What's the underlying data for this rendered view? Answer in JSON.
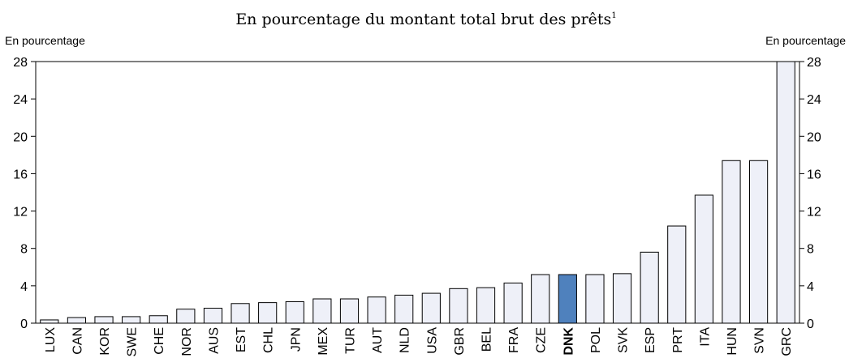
{
  "chart_data": {
    "type": "bar",
    "title": "En pourcentage du montant total brut des prêts",
    "title_note": "1",
    "ylabel": "En pourcentage",
    "y2label": "En pourcentage",
    "categories": [
      "LUX",
      "CAN",
      "KOR",
      "SWE",
      "CHE",
      "NOR",
      "AUS",
      "EST",
      "CHL",
      "JPN",
      "MEX",
      "TUR",
      "AUT",
      "NLD",
      "USA",
      "GBR",
      "BEL",
      "FRA",
      "CZE",
      "DNK",
      "POL",
      "SVK",
      "ESP",
      "PRT",
      "ITA",
      "HUN",
      "SVN",
      "GRC"
    ],
    "values": [
      0.35,
      0.6,
      0.7,
      0.7,
      0.8,
      1.5,
      1.6,
      2.1,
      2.2,
      2.3,
      2.6,
      2.6,
      2.8,
      3.0,
      3.2,
      3.7,
      3.8,
      4.3,
      5.2,
      5.2,
      5.2,
      5.3,
      7.6,
      10.4,
      13.7,
      17.4,
      17.4,
      28
    ],
    "colors": [
      "#eef0f8",
      "#eef0f8",
      "#eef0f8",
      "#eef0f8",
      "#eef0f8",
      "#eef0f8",
      "#eef0f8",
      "#eef0f8",
      "#eef0f8",
      "#eef0f8",
      "#eef0f8",
      "#eef0f8",
      "#eef0f8",
      "#eef0f8",
      "#eef0f8",
      "#eef0f8",
      "#eef0f8",
      "#eef0f8",
      "#eef0f8",
      "#4f81bd",
      "#eef0f8",
      "#eef0f8",
      "#eef0f8",
      "#eef0f8",
      "#eef0f8",
      "#eef0f8",
      "#eef0f8",
      "#eef0f8"
    ],
    "bold_categories": [
      false,
      false,
      false,
      false,
      false,
      false,
      false,
      false,
      false,
      false,
      false,
      false,
      false,
      false,
      false,
      false,
      false,
      false,
      false,
      true,
      false,
      false,
      false,
      false,
      false,
      false,
      false,
      false
    ],
    "ylim": [
      0,
      28
    ],
    "yticks": [
      0,
      4,
      8,
      12,
      16,
      20,
      24,
      28
    ],
    "y2lim": [
      0,
      28
    ],
    "y2ticks": [
      0,
      4,
      8,
      12,
      16,
      20,
      24,
      28
    ],
    "grid": false
  }
}
